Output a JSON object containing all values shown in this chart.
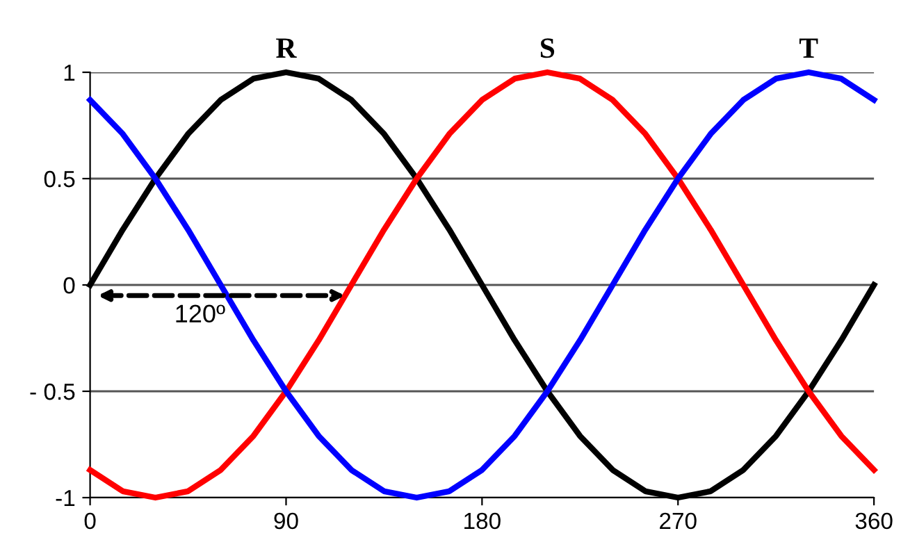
{
  "chart_data": {
    "type": "line",
    "x": [
      0,
      15,
      30,
      45,
      60,
      75,
      90,
      105,
      120,
      135,
      150,
      165,
      180,
      195,
      210,
      225,
      240,
      255,
      270,
      285,
      300,
      315,
      330,
      345,
      360
    ],
    "series": [
      {
        "name": "R",
        "color": "#000000",
        "values": [
          0,
          0.26,
          0.5,
          0.71,
          0.87,
          0.97,
          1,
          0.97,
          0.87,
          0.71,
          0.5,
          0.26,
          0,
          -0.26,
          -0.5,
          -0.71,
          -0.87,
          -0.97,
          -1,
          -0.97,
          -0.87,
          -0.71,
          -0.5,
          -0.26,
          0
        ]
      },
      {
        "name": "S",
        "color": "#ff0000",
        "values": [
          -0.87,
          -0.97,
          -1,
          -0.97,
          -0.87,
          -0.71,
          -0.5,
          -0.26,
          0,
          0.26,
          0.5,
          0.71,
          0.87,
          0.97,
          1,
          0.97,
          0.87,
          0.71,
          0.5,
          0.26,
          0,
          -0.26,
          -0.5,
          -0.71,
          -0.87
        ]
      },
      {
        "name": "T",
        "color": "#0000ff",
        "values": [
          0.87,
          0.71,
          0.5,
          0.26,
          0,
          -0.26,
          -0.5,
          -0.71,
          -0.87,
          -0.97,
          -1,
          -0.97,
          -0.87,
          -0.71,
          -0.5,
          -0.26,
          0,
          0.26,
          0.5,
          0.71,
          0.87,
          0.97,
          1,
          0.97,
          0.87
        ]
      }
    ],
    "xlim": [
      0,
      360
    ],
    "xticks": [
      0,
      90,
      180,
      270,
      360
    ],
    "ylim": [
      -1,
      1
    ],
    "yticks": [
      1,
      0.5,
      0,
      {
        "value": -0.5,
        "label": "- 0.5"
      },
      -1
    ],
    "grid": "y",
    "legend": false,
    "marker": "none",
    "line_style": "solid",
    "annotations": [
      "120º"
    ]
  }
}
